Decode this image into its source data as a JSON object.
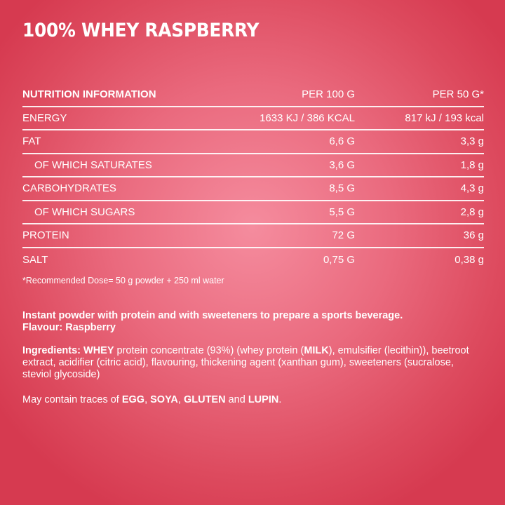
{
  "title": "100% WHEY RASPBERRY",
  "colors": {
    "background_center": "#f58c9e",
    "background_edge": "#d63a50",
    "text": "#ffffff"
  },
  "table": {
    "header": {
      "label": "NUTRITION INFORMATION",
      "per100": "PER 100 G",
      "per50": "PER 50 G*"
    },
    "rows": [
      {
        "label": "ENERGY",
        "per100": "1633 KJ / 386 KCAL",
        "per50": "817 kJ / 193 kcal"
      },
      {
        "label": "FAT",
        "per100": "6,6 G",
        "per50": "3,3 g"
      },
      {
        "label": "OF WHICH SATURATES",
        "per100": "3,6 G",
        "per50": "1,8 g"
      },
      {
        "label": "CARBOHYDRATES",
        "per100": "8,5 G",
        "per50": "4,3 g"
      },
      {
        "label": "OF WHICH SUGARS",
        "per100": "5,5 G",
        "per50": "2,8 g"
      },
      {
        "label": "PROTEIN",
        "per100": "72 G",
        "per50": "36 g"
      },
      {
        "label": "SALT",
        "per100": "0,75 G",
        "per50": "0,38 g"
      }
    ]
  },
  "footnote": "*Recommended Dose= 50 g powder + 250 ml water",
  "description": {
    "line1": "Instant powder with protein and with sweeteners to prepare a sports beverage.",
    "line2": "Flavour: Raspberry"
  },
  "ingredients": {
    "label": "Ingredients:",
    "whey": "WHEY",
    "part1": " protein concentrate (93%) (whey protein (",
    "milk": "MILK",
    "part2": "), emulsifier (lecithin)), beetroot extract, acidifier (citric acid), flavouring, thickening agent (xanthan gum), sweeteners (sucralose, steviol glycoside)"
  },
  "allergens": {
    "prefix": "May contain traces of ",
    "egg": "EGG",
    "sep1": ", ",
    "soya": "SOYA",
    "sep2": ", ",
    "gluten": "GLUTEN",
    "and": " and ",
    "lupin": "LUPIN",
    "end": "."
  }
}
